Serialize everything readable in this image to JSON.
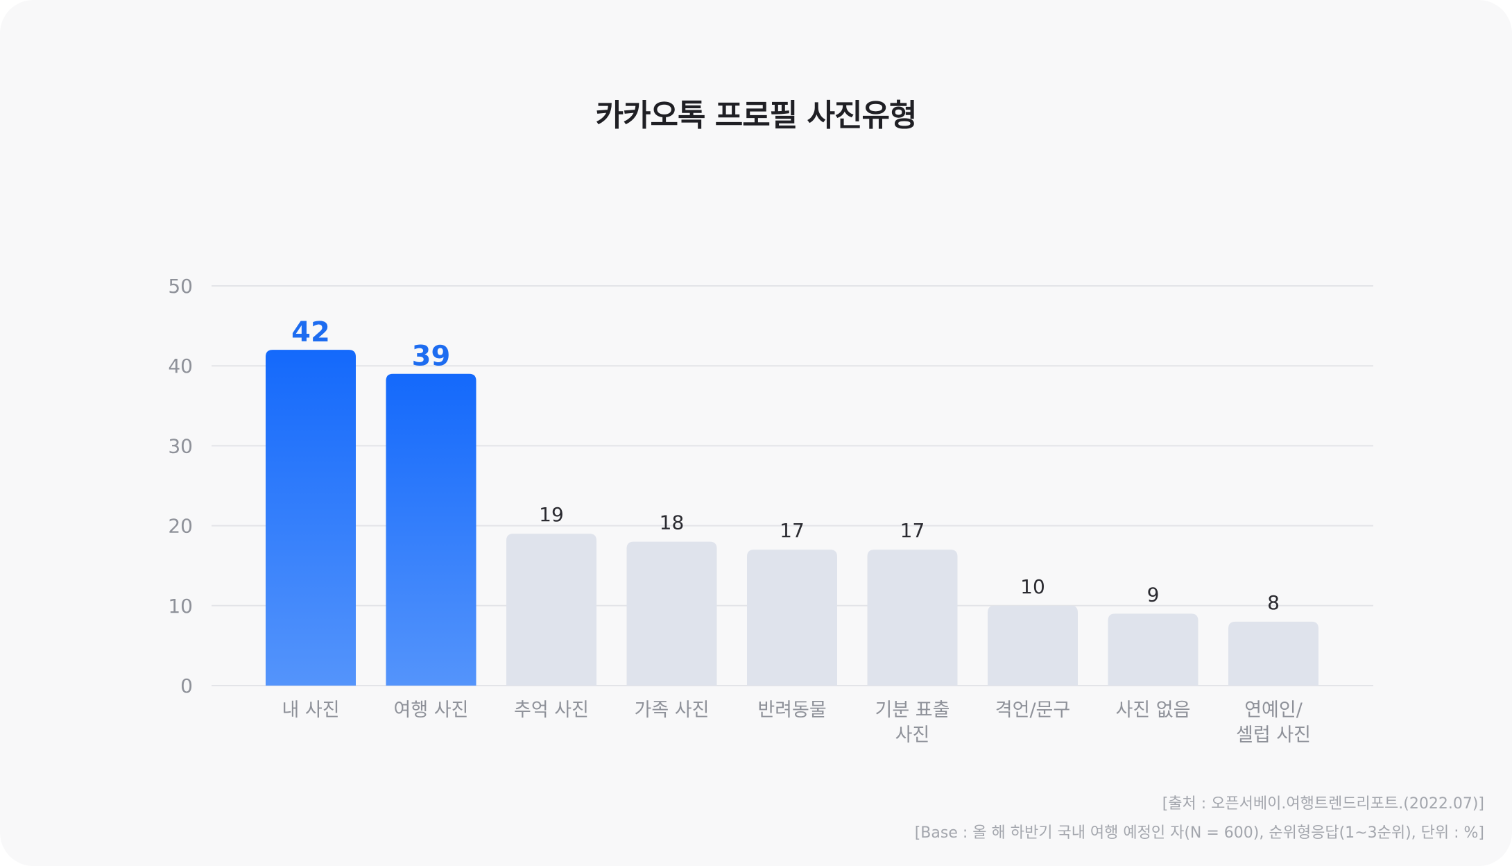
{
  "chart_data": {
    "type": "bar",
    "title": "카카오톡 프로필 사진유형",
    "categories": [
      "내 사진",
      "여행 사진",
      "추억 사진",
      "가족 사진",
      "반려동물",
      "기분 표출\n사진",
      "격언/문구",
      "사진 없음",
      "연예인/\n셀럽 사진"
    ],
    "values": [
      42,
      39,
      19,
      18,
      17,
      17,
      10,
      9,
      8
    ],
    "highlighted": [
      true,
      true,
      false,
      false,
      false,
      false,
      false,
      false,
      false
    ],
    "ylim": [
      0,
      50
    ],
    "yticks": [
      0,
      10,
      20,
      30,
      40,
      50
    ],
    "grid": true,
    "xlabel": "",
    "ylabel": ""
  },
  "colors": {
    "highlight_top": "#1469fb",
    "highlight_bottom": "#5494fb",
    "bar_default": "#dfe3ec",
    "highlight_label": "#1d6cf0",
    "default_label": "#2a2a30",
    "tick_label": "#8e9199",
    "grid": "#e3e4e8"
  },
  "notes": {
    "source": "[출처 : 오픈서베이.여행트렌드리포트.(2022.07)]",
    "base": "[Base : 올 해 하반기 국내 여행 예정인 자(N = 600), 순위형응답(1~3순위), 단위 : %]"
  }
}
